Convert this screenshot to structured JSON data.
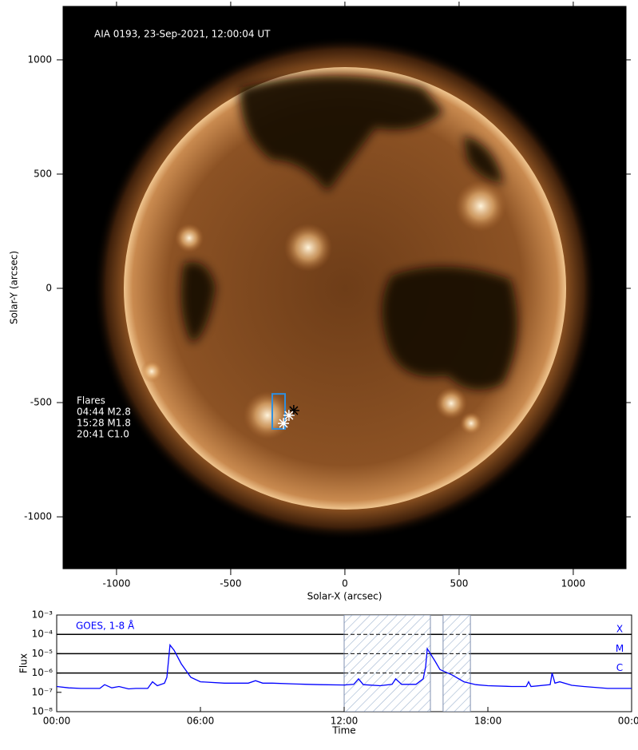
{
  "chart_data": [
    {
      "type": "image",
      "title": "AIA 0193, 23-Sep-2021, 12:00:04 UT",
      "x_label": "Solar-X (arcsec)",
      "y_label": "Solar-Y (arcsec)",
      "xlim": [
        -1234,
        1231
      ],
      "ylim": [
        -1227,
        1234
      ],
      "xticks": [
        -1000,
        -500,
        0,
        500,
        1000
      ],
      "yticks": [
        -1000,
        -500,
        0,
        500,
        1000
      ],
      "flares_title": "Flares",
      "flares": [
        "04:44 M2.8",
        "15:28 M1.8",
        "20:41 C1.0"
      ],
      "flare_box": {
        "x": [
          -318,
          -262
        ],
        "y": [
          -615,
          -462
        ]
      },
      "flare_positions": [
        {
          "x": -224,
          "y": -535
        },
        {
          "x": -245,
          "y": -556
        },
        {
          "x": -269,
          "y": -591
        }
      ]
    },
    {
      "type": "line",
      "title": "GOES, 1-8 Å",
      "x_label": "Time",
      "y_label": "Flux",
      "log_y": true,
      "xlim": [
        0,
        24
      ],
      "ylim": [
        1e-08,
        0.001
      ],
      "xticks": [
        {
          "value": 0,
          "label": "00:00"
        },
        {
          "value": 6,
          "label": "06:00"
        },
        {
          "value": 12,
          "label": "12:00"
        },
        {
          "value": 18,
          "label": "18:00"
        },
        {
          "value": 24,
          "label": "00:00"
        }
      ],
      "yticks": [
        {
          "value": 1e-08,
          "label": "10⁻⁸"
        },
        {
          "value": 1e-07,
          "label": "10⁻⁷"
        },
        {
          "value": 1e-06,
          "label": "10⁻⁶"
        },
        {
          "value": 1e-05,
          "label": "10⁻⁵"
        },
        {
          "value": 0.0001,
          "label": "10⁻⁴"
        },
        {
          "value": 0.001,
          "label": "10⁻³"
        }
      ],
      "levels": [
        {
          "value": 0.0001,
          "label": "X"
        },
        {
          "value": 1e-05,
          "label": "M"
        },
        {
          "value": 1e-06,
          "label": "C"
        }
      ],
      "shaded": [
        [
          12.0,
          15.6
        ],
        [
          16.13,
          17.27
        ]
      ],
      "series": [
        {
          "name": "GOES, 1-8 Å",
          "color": "#0000ff",
          "x": [
            0,
            0.5,
            1.0,
            1.8,
            2.0,
            2.3,
            2.6,
            3.0,
            3.3,
            3.8,
            4.0,
            4.2,
            4.5,
            4.6,
            4.73,
            4.9,
            5.2,
            5.6,
            6.0,
            7.0,
            8.0,
            8.3,
            8.6,
            9.0,
            10.0,
            11.0,
            12.0,
            12.4,
            12.6,
            12.8,
            13.5,
            14.0,
            14.15,
            14.4,
            15.0,
            15.3,
            15.4,
            15.47,
            15.8,
            16.0,
            16.5,
            17.0,
            17.5,
            18.0,
            19.0,
            19.6,
            19.7,
            19.8,
            20.6,
            20.68,
            20.8,
            21.0,
            21.5,
            22.0,
            23.0,
            24.0
          ],
          "values": [
            2e-07,
            1.7e-07,
            1.6e-07,
            1.6e-07,
            2.5e-07,
            1.7e-07,
            2e-07,
            1.5e-07,
            1.6e-07,
            1.6e-07,
            3.5e-07,
            2.2e-07,
            3e-07,
            6e-07,
            2.8e-05,
            1.5e-05,
            3e-06,
            6e-07,
            3.5e-07,
            3e-07,
            3e-07,
            4e-07,
            3e-07,
            3e-07,
            2.7e-07,
            2.5e-07,
            2.4e-07,
            2.6e-07,
            5e-07,
            2.5e-07,
            2.2e-07,
            2.6e-07,
            5e-07,
            2.6e-07,
            2.6e-07,
            5e-07,
            2e-06,
            1.8e-05,
            4e-06,
            1.5e-06,
            8e-07,
            3.5e-07,
            2.5e-07,
            2.2e-07,
            2e-07,
            2e-07,
            3.5e-07,
            2e-07,
            2.5e-07,
            1e-06,
            3e-07,
            3.5e-07,
            2.3e-07,
            2e-07,
            1.6e-07,
            1.6e-07
          ]
        }
      ]
    }
  ]
}
